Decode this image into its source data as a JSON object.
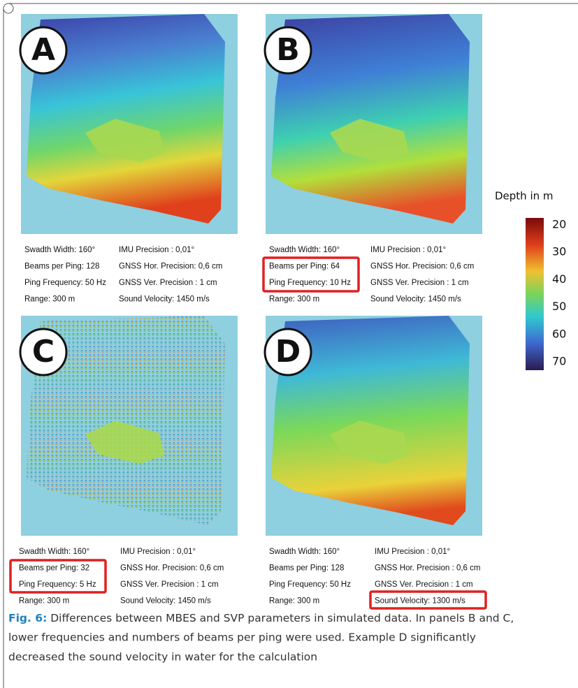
{
  "panels": [
    {
      "label": "A",
      "params_left": [
        "Swadth Width: 160°",
        "Beams per Ping: 128",
        "Ping Frequency: 50 Hz",
        "Range: 300 m"
      ],
      "params_right": [
        "IMU Precision : 0,01°",
        "GNSS Hor. Precision: 0,6 cm",
        "GNSS Ver. Precision : 1 cm",
        "Sound Velocity: 1450 m/s"
      ]
    },
    {
      "label": "B",
      "params_left": [
        "Swadth Width: 160°",
        "Beams per Ping: 64",
        "Ping Frequency: 10 Hz",
        "Range: 300 m"
      ],
      "params_right": [
        "IMU Precision : 0,01°",
        "GNSS Hor. Precision: 0,6 cm",
        "GNSS Ver. Precision : 1 cm",
        "Sound Velocity: 1450 m/s"
      ]
    },
    {
      "label": "C",
      "params_left": [
        "Swadth Width: 160°",
        "Beams per Ping: 32",
        "Ping Frequency: 5 Hz",
        "Range: 300 m"
      ],
      "params_right": [
        "IMU Precision : 0,01°",
        "GNSS Hor. Precision: 0,6 cm",
        "GNSS Ver. Precision : 1 cm",
        "Sound Velocity: 1450 m/s"
      ]
    },
    {
      "label": "D",
      "params_left": [
        "Swadth Width: 160°",
        "Beams per Ping: 128",
        "Ping Frequency: 50 Hz",
        "Range: 300 m"
      ],
      "params_right": [
        "IMU Precision : 0,01°",
        "GNSS Hor. Precision : 0,6 cm",
        "GNSS Ver. Precision : 1 cm",
        "Sound Velocity: 1300 m/s"
      ]
    }
  ],
  "colorbar": {
    "title": "Depth in m",
    "ticks": [
      20,
      30,
      40,
      50,
      60,
      70
    ]
  },
  "caption": {
    "label": "Fig. 6:",
    "lines": [
      "Differences between MBES and SVP parameters in simulated data. In panels B and C,",
      "lower frequencies and numbers of beams per ping were used. Example D significantly",
      "decreased the sound velocity in water for the calculation"
    ]
  }
}
